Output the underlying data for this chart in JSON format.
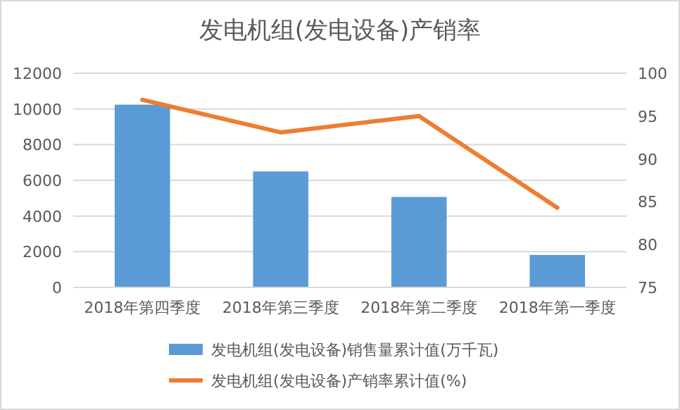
{
  "chart_data": {
    "type": "bar",
    "title": "发电机组(发电设备)产销率",
    "categories": [
      "2018年第四季度",
      "2018年第三季度",
      "2018年第二季度",
      "2018年第一季度"
    ],
    "series": [
      {
        "name": "发电机组(发电设备)销售量累计值(万千瓦)",
        "color": "#5b9bd5",
        "values": [
          10240,
          6500,
          5070,
          1820
        ]
      },
      {
        "name": "发电机组(发电设备)产销率累计值(%)",
        "color": "#ed7d31",
        "type": "line",
        "axis": "y2",
        "values": [
          96.9,
          93.1,
          95.0,
          84.3
        ]
      }
    ],
    "ylim": [
      0,
      12000
    ],
    "yticks": [
      0,
      2000,
      4000,
      6000,
      8000,
      10000,
      12000
    ],
    "y2lim": [
      75,
      100
    ],
    "y2ticks": [
      75,
      80,
      85,
      90,
      95,
      100
    ],
    "grid": "y",
    "legend": "bottom"
  }
}
